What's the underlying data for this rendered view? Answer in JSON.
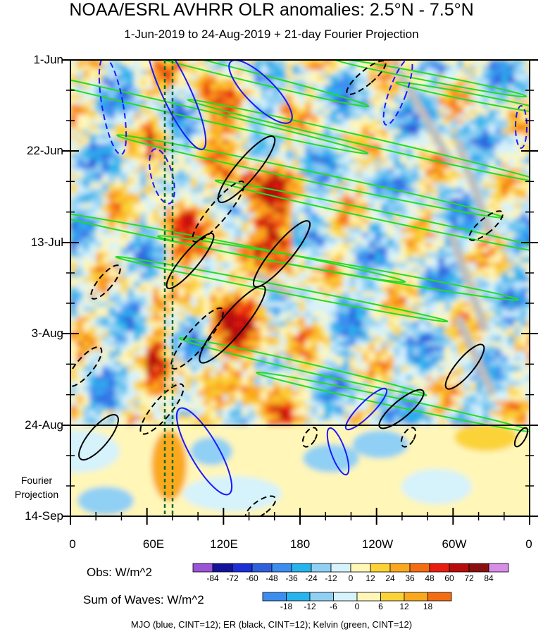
{
  "chart_data": {
    "type": "heatmap",
    "title": "NOAA/ESRL AVHRR OLR anomalies: 2.5°N - 7.5°N",
    "subtitle": "1-Jun-2019 to 24-Aug-2019 + 21-day Fourier Projection",
    "x_ticks": [
      "0",
      "60E",
      "120E",
      "180",
      "120W",
      "60W",
      "0"
    ],
    "y_ticks": [
      "1-Jun",
      "22-Jun",
      "13-Jul",
      "3-Aug",
      "24-Aug",
      "14-Sep"
    ],
    "projection_label": [
      "Fourier",
      "Projection"
    ],
    "observed_end": "24-Aug",
    "reference_lines_x": [
      "~73E",
      "~80E"
    ],
    "obs_colorbar": {
      "title": "Obs: W/m^2",
      "levels": [
        "-84",
        "-72",
        "-60",
        "-48",
        "-36",
        "-24",
        "-12",
        "0",
        "12",
        "24",
        "36",
        "48",
        "60",
        "72",
        "84"
      ],
      "colors": [
        "#9a55d6",
        "#14149a",
        "#1e2ed6",
        "#2f5fdc",
        "#3b8ef0",
        "#27b4ec",
        "#8fd0f4",
        "#d6f2fb",
        "#fff6b8",
        "#fbd337",
        "#fba81f",
        "#f56d12",
        "#e81f10",
        "#b80c0c",
        "#8a1010",
        "#d98ee6"
      ]
    },
    "waves_colorbar": {
      "title": "Sum of Waves: W/m^2",
      "levels": [
        "-18",
        "-12",
        "-6",
        "0",
        "6",
        "12",
        "18"
      ],
      "colors": [
        "#3b8ef0",
        "#27b4ec",
        "#8fd0f4",
        "#d6f2fb",
        "#fff6b8",
        "#fbd337",
        "#fba81f",
        "#f56d12"
      ]
    },
    "contours": [
      {
        "name": "MJO",
        "color": "#1a1aff"
      },
      {
        "name": "ER",
        "color": "#000000"
      },
      {
        "name": "Kelvin",
        "color": "#22dd22"
      }
    ],
    "footnote": "MJO (blue, CINT=12); ER (black, CINT=12); Kelvin (green, CINT=12)"
  }
}
